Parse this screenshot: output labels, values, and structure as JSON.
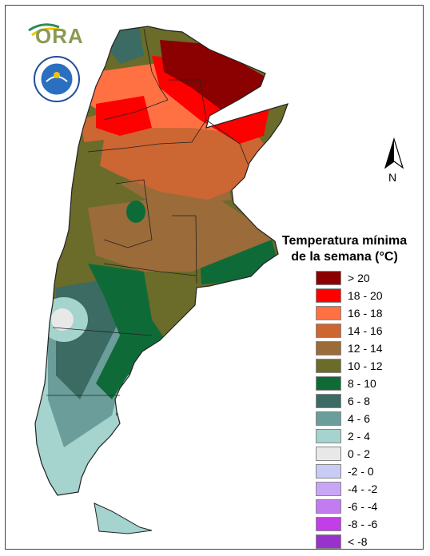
{
  "logo": {
    "text": "ORA",
    "icon": "ora-logo-icon"
  },
  "seal": {
    "icon": "national-weather-service-seal-icon"
  },
  "north_arrow": {
    "label": "N",
    "icon": "north-arrow-icon"
  },
  "legend": {
    "title_line1": "Temperatura mínima",
    "title_line2": "de la semana (°C)",
    "items": [
      {
        "label": "> 20",
        "color": "#8b0000"
      },
      {
        "label": "18 - 20",
        "color": "#ff0000"
      },
      {
        "label": "16 - 18",
        "color": "#ff7043"
      },
      {
        "label": "14 - 16",
        "color": "#cc6633"
      },
      {
        "label": "12 - 14",
        "color": "#9b6b3a"
      },
      {
        "label": "10 - 12",
        "color": "#6b6b2a"
      },
      {
        "label": "8 - 10",
        "color": "#0e6b38"
      },
      {
        "label": "6 - 8",
        "color": "#3b6b63"
      },
      {
        "label": "4 - 6",
        "color": "#6b9e9a"
      },
      {
        "label": "2 - 4",
        "color": "#a5d3cd"
      },
      {
        "label": "0 - 2",
        "color": "#e8e8e8"
      },
      {
        "label": "-2 - 0",
        "color": "#c8cbf5"
      },
      {
        "label": "-4 - -2",
        "color": "#c9a6f5"
      },
      {
        "label": "-6 - -4",
        "color": "#c27cf0"
      },
      {
        "label": "-8 - -6",
        "color": "#c13ee8"
      },
      {
        "label": "< -8",
        "color": "#9932cc"
      }
    ]
  }
}
